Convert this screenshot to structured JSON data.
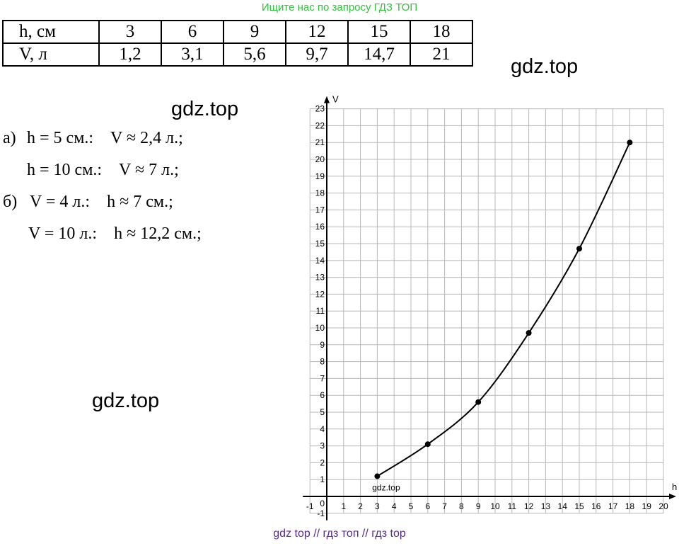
{
  "banner": "Ищите нас по запросу ГДЗ ТОП",
  "table": {
    "row_h_label": "h, см",
    "row_v_label": "V, л",
    "h_values": [
      "3",
      "6",
      "9",
      "12",
      "15",
      "18"
    ],
    "v_values": [
      "1,2",
      "3,1",
      "5,6",
      "9,7",
      "14,7",
      "21"
    ]
  },
  "watermarks": {
    "right_top": "gdz.top",
    "left_top": "gdz.top",
    "left_mid": "gdz.top",
    "chart_small": "gdz.top"
  },
  "solution": {
    "a_prefix": "а)",
    "a1": "h = 5 см.:    V ≈ 2,4 л.;",
    "a2": "h = 10 см.:    V ≈ 7 л.;",
    "b_prefix": "б)",
    "b1": "V = 4 л.:    h ≈ 7 см.;",
    "b2": "V = 10 л.:    h ≈ 12,2 см.;"
  },
  "footer": "gdz top  //  гдз топ  //  гдз top",
  "chart_data": {
    "type": "line",
    "xlabel": "h",
    "ylabel": "V",
    "xlim": [
      -1,
      20
    ],
    "ylim": [
      -1,
      23
    ],
    "x": [
      3,
      6,
      9,
      12,
      15,
      18
    ],
    "y": [
      1.2,
      3.1,
      5.6,
      9.7,
      14.7,
      21
    ],
    "grid": true,
    "origin_label": "0",
    "colors": {
      "line": "#000000",
      "grid": "#b8b8b8",
      "axis": "#000000"
    }
  }
}
